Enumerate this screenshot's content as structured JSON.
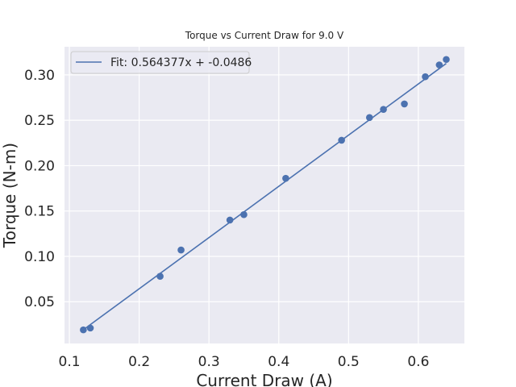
{
  "chart_data": {
    "type": "scatter",
    "title": "Torque vs Current Draw for 9.0 V",
    "xlabel": "Current Draw (A)",
    "ylabel": "Torque (N-m)",
    "xlim": [
      0.093,
      0.666
    ],
    "ylim": [
      0.004,
      0.331
    ],
    "xticks": [
      0.1,
      0.2,
      0.3,
      0.4,
      0.5,
      0.6
    ],
    "xtick_labels": [
      "0.1",
      "0.2",
      "0.3",
      "0.4",
      "0.5",
      "0.6"
    ],
    "yticks": [
      0.05,
      0.1,
      0.15,
      0.2,
      0.25,
      0.3
    ],
    "ytick_labels": [
      "0.05",
      "0.10",
      "0.15",
      "0.20",
      "0.25",
      "0.30"
    ],
    "grid": true,
    "legend": {
      "position": "top-left",
      "entries": [
        "Fit: 0.564377x + -0.0486"
      ]
    },
    "colors": {
      "background": "#eaeaf2",
      "grid": "#ffffff",
      "series": "#4c72b0"
    },
    "series": [
      {
        "kind": "points",
        "x": [
          0.12,
          0.13,
          0.23,
          0.26,
          0.33,
          0.35,
          0.41,
          0.49,
          0.53,
          0.55,
          0.58,
          0.61,
          0.63,
          0.64
        ],
        "y": [
          0.019,
          0.021,
          0.078,
          0.107,
          0.14,
          0.146,
          0.186,
          0.228,
          0.253,
          0.262,
          0.268,
          0.298,
          0.311,
          0.317
        ]
      },
      {
        "kind": "fit-line",
        "name": "Fit: 0.564377x + -0.0486",
        "slope": 0.564377,
        "intercept": -0.0486,
        "x_range": [
          0.12,
          0.64
        ]
      }
    ]
  }
}
